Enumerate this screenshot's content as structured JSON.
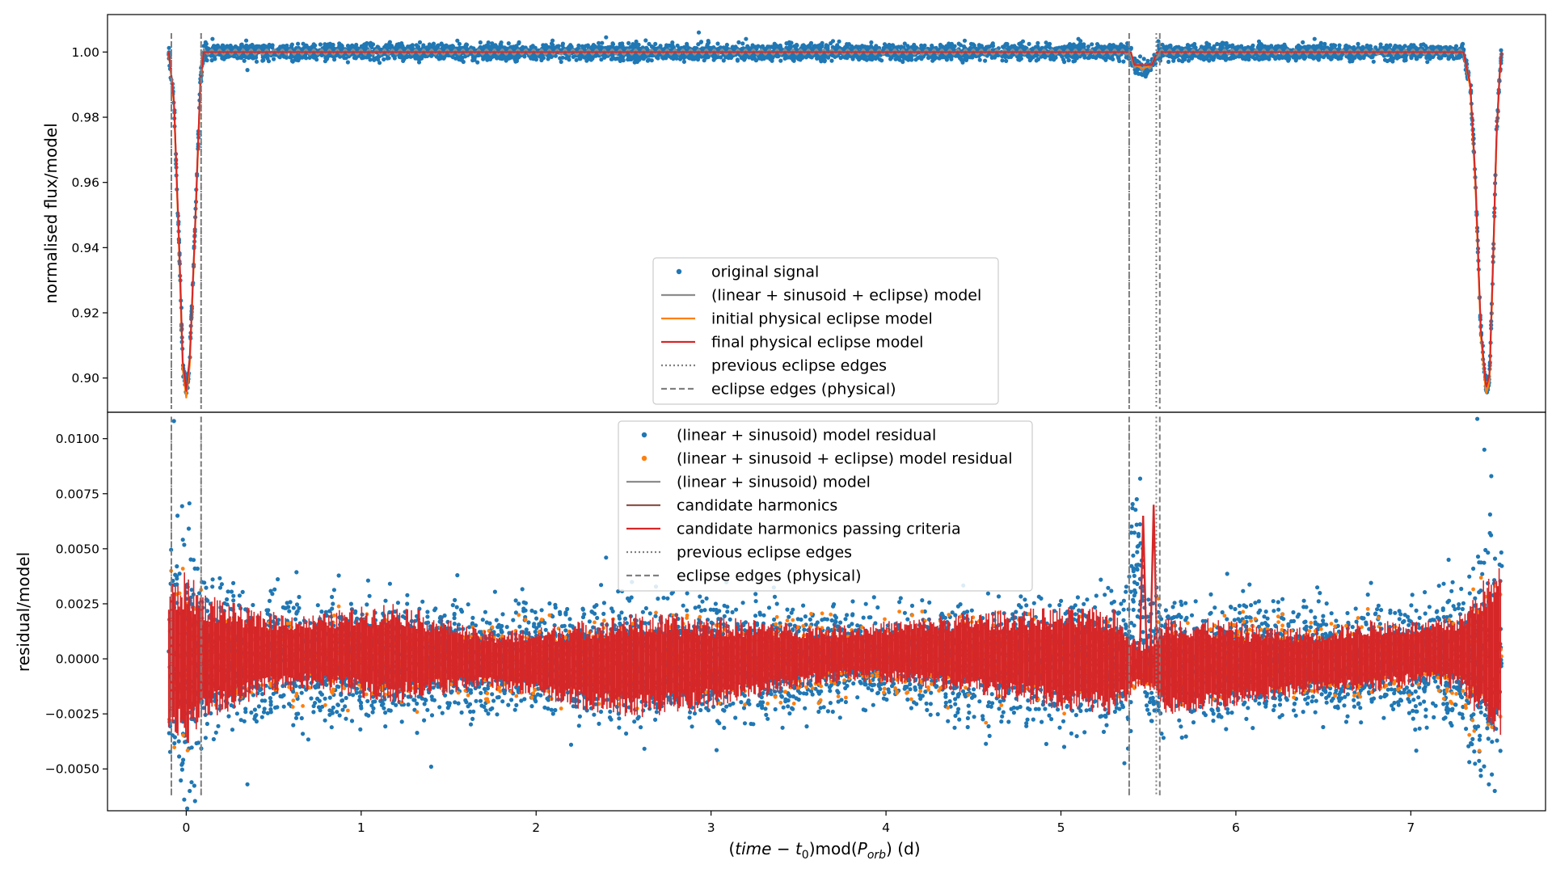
{
  "chart_data": [
    {
      "type": "scatter",
      "panel": "top",
      "title": "",
      "ylabel": "normalised flux/model",
      "xlim": [
        -0.45,
        7.77
      ],
      "ylim": [
        0.8895,
        1.0115
      ],
      "yticks": [
        0.9,
        0.92,
        0.94,
        0.96,
        0.98,
        1.0
      ],
      "ytick_labels": [
        "0.90",
        "0.92",
        "0.94",
        "0.96",
        "0.98",
        "1.00"
      ],
      "grid": false,
      "legend_position": "lower-center",
      "legend": [
        {
          "label": "original signal",
          "kind": "dot",
          "color": "#1f77b4"
        },
        {
          "label": "(linear + sinusoid + eclipse) model",
          "kind": "line",
          "color": "#8c8c8c"
        },
        {
          "label": "initial physical eclipse model",
          "kind": "line",
          "color": "#ff7f0e"
        },
        {
          "label": "final physical eclipse model",
          "kind": "line",
          "color": "#d62728"
        },
        {
          "label": "previous eclipse edges",
          "kind": "dotted",
          "color": "#808080"
        },
        {
          "label": "eclipse edges (physical)",
          "kind": "dashed",
          "color": "#808080"
        }
      ],
      "series": [
        {
          "name": "original signal",
          "color": "#1f77b4",
          "noise": 0.0012,
          "x": [
            -0.1,
            -0.07,
            -0.04,
            -0.02,
            0.0,
            0.02,
            0.05,
            0.08,
            0.1,
            0.3,
            1.0,
            2.0,
            3.0,
            4.0,
            5.0,
            5.38,
            5.42,
            5.47,
            5.52,
            5.56,
            6.0,
            7.0,
            7.3,
            7.34,
            7.37,
            7.4,
            7.43,
            7.45,
            7.47,
            7.49,
            7.51,
            7.52
          ],
          "y": [
            1.0,
            0.985,
            0.94,
            0.905,
            0.895,
            0.906,
            0.945,
            0.99,
            1.0,
            1.0,
            1.0,
            1.0,
            1.0,
            1.0,
            1.0,
            1.0,
            0.996,
            0.995,
            0.996,
            1.0,
            1.0,
            1.0,
            1.0,
            0.99,
            0.96,
            0.915,
            0.896,
            0.9,
            0.935,
            0.975,
            0.995,
            1.0
          ]
        },
        {
          "name": "(linear + sinusoid + eclipse) model",
          "color": "#8c8c8c",
          "x": [
            -0.1,
            -0.07,
            -0.04,
            -0.02,
            0.0,
            0.02,
            0.05,
            0.08,
            0.1,
            5.38,
            5.42,
            5.47,
            5.52,
            5.56,
            7.3,
            7.34,
            7.37,
            7.4,
            7.43,
            7.45,
            7.47,
            7.49,
            7.51,
            7.52
          ],
          "y": [
            1.0,
            0.985,
            0.94,
            0.905,
            0.895,
            0.906,
            0.945,
            0.99,
            1.0,
            1.0,
            0.996,
            0.995,
            0.996,
            1.0,
            1.0,
            0.99,
            0.96,
            0.915,
            0.896,
            0.9,
            0.935,
            0.975,
            0.995,
            1.0
          ]
        },
        {
          "name": "initial physical eclipse model",
          "color": "#ff7f0e",
          "x": [
            -0.1,
            -0.07,
            -0.04,
            -0.02,
            0.0,
            0.02,
            0.05,
            0.08,
            0.1,
            5.4,
            5.42,
            5.47,
            5.52,
            5.55,
            7.3,
            7.34,
            7.37,
            7.4,
            7.43,
            7.45,
            7.47,
            7.49,
            7.51,
            7.52
          ],
          "y": [
            1.0,
            0.984,
            0.938,
            0.903,
            0.894,
            0.904,
            0.944,
            0.989,
            1.0,
            1.0,
            0.996,
            0.995,
            0.996,
            1.0,
            1.0,
            0.989,
            0.958,
            0.913,
            0.895,
            0.899,
            0.934,
            0.974,
            0.995,
            1.0
          ]
        },
        {
          "name": "final physical eclipse model",
          "color": "#d62728",
          "x": [
            -0.1,
            -0.07,
            -0.04,
            -0.02,
            0.0,
            0.02,
            0.05,
            0.08,
            0.1,
            5.4,
            5.42,
            5.47,
            5.52,
            5.55,
            7.3,
            7.34,
            7.37,
            7.4,
            7.43,
            7.45,
            7.47,
            7.49,
            7.51,
            7.52
          ],
          "y": [
            1.0,
            0.985,
            0.94,
            0.905,
            0.896,
            0.906,
            0.945,
            0.99,
            1.0,
            1.0,
            0.996,
            0.996,
            0.996,
            1.0,
            1.0,
            0.99,
            0.96,
            0.915,
            0.897,
            0.901,
            0.936,
            0.975,
            0.995,
            1.0
          ]
        }
      ],
      "outliers": {
        "x": [
          0.15,
          0.35,
          1.55,
          2.4,
          2.93,
          3.2,
          4.45,
          5.1,
          6.45,
          6.9
        ],
        "y": [
          1.004,
          0.9945,
          1.0035,
          1.0045,
          1.006,
          1.004,
          1.0035,
          1.004,
          1.004,
          0.998
        ]
      },
      "vlines": [
        {
          "x": -0.085,
          "style": "dotted"
        },
        {
          "x": -0.085,
          "style": "dashed"
        },
        {
          "x": 0.085,
          "style": "dotted"
        },
        {
          "x": 0.085,
          "style": "dashed"
        },
        {
          "x": 5.39,
          "style": "dotted"
        },
        {
          "x": 5.39,
          "style": "dashed"
        },
        {
          "x": 5.545,
          "style": "dotted"
        },
        {
          "x": 5.565,
          "style": "dashed"
        }
      ]
    },
    {
      "type": "scatter",
      "panel": "bottom",
      "title": "",
      "xlabel": "(time − t0)mod(Porb) (d)",
      "xlabel_parts": {
        "open": "(",
        "time": "time",
        "minus": " − ",
        "t": "t",
        "t_sub": "0",
        "close_mod": ")mod(",
        "P": "P",
        "P_sub": "orb",
        "close": ")",
        "unit": " (d)"
      },
      "ylabel": "residual/model",
      "xlim": [
        -0.45,
        7.77
      ],
      "ylim": [
        -0.0069,
        0.0112
      ],
      "xticks": [
        0,
        1,
        2,
        3,
        4,
        5,
        6,
        7
      ],
      "xtick_labels": [
        "0",
        "1",
        "2",
        "3",
        "4",
        "5",
        "6",
        "7"
      ],
      "yticks": [
        -0.005,
        -0.0025,
        0.0,
        0.0025,
        0.005,
        0.0075,
        0.01
      ],
      "ytick_labels": [
        "−0.0050",
        "−0.0025",
        "0.0000",
        "0.0025",
        "0.0050",
        "0.0075",
        "0.0100"
      ],
      "grid": false,
      "legend_position": "upper-center",
      "legend": [
        {
          "label": "(linear + sinusoid) model residual",
          "kind": "dot",
          "color": "#1f77b4"
        },
        {
          "label": "(linear + sinusoid + eclipse) model residual",
          "kind": "dot",
          "color": "#ff7f0e"
        },
        {
          "label": "(linear + sinusoid) model",
          "kind": "line",
          "color": "#8c8c8c"
        },
        {
          "label": "candidate harmonics",
          "kind": "line",
          "color": "#8c564b"
        },
        {
          "label": "candidate harmonics passing criteria",
          "kind": "line",
          "color": "#d62728"
        },
        {
          "label": "previous eclipse edges",
          "kind": "dotted",
          "color": "#808080"
        },
        {
          "label": "eclipse edges (physical)",
          "kind": "dashed",
          "color": "#808080"
        }
      ],
      "series": [
        {
          "name": "candidate harmonics passing criteria",
          "color": "#d62728",
          "x": [
            -0.1,
            0.0,
            0.1,
            0.4,
            0.7,
            1.0,
            1.2,
            1.4,
            1.7,
            2.0,
            2.3,
            2.6,
            2.9,
            3.2,
            3.5,
            3.8,
            4.1,
            4.4,
            4.7,
            5.0,
            5.3,
            5.39,
            5.45,
            5.55,
            5.6,
            5.9,
            6.2,
            6.5,
            6.8,
            7.1,
            7.3,
            7.4,
            7.52
          ],
          "amp": [
            0.0035,
            0.004,
            0.003,
            0.002,
            0.0017,
            0.0021,
            0.0024,
            0.0019,
            0.0013,
            0.0016,
            0.0021,
            0.0024,
            0.0022,
            0.0019,
            0.0015,
            0.0013,
            0.0015,
            0.0018,
            0.0021,
            0.0024,
            0.0025,
            0.0016,
            0.001,
            0.0016,
            0.0023,
            0.0021,
            0.0017,
            0.0015,
            0.0017,
            0.0015,
            0.0018,
            0.0032,
            0.004
          ]
        },
        {
          "name": "(linear + sinusoid) model residual",
          "color": "#1f77b4",
          "x": [
            -0.1,
            0.0,
            0.1,
            0.4,
            1.0,
            1.4,
            2.0,
            2.6,
            3.2,
            3.8,
            4.4,
            5.0,
            5.3,
            5.39,
            5.45,
            5.55,
            5.6,
            6.2,
            6.8,
            7.3,
            7.4,
            7.52
          ],
          "amp": [
            0.005,
            0.0055,
            0.0032,
            0.0026,
            0.0026,
            0.0022,
            0.002,
            0.0026,
            0.0023,
            0.0018,
            0.0022,
            0.0026,
            0.0028,
            0.0035,
            0.003,
            0.0035,
            0.0028,
            0.0022,
            0.0021,
            0.003,
            0.005,
            0.0055
          ]
        },
        {
          "name": "(linear + sinusoid + eclipse) model residual",
          "color": "#ff7f0e",
          "x": [
            -0.1,
            0.0,
            0.1,
            0.4,
            1.0,
            2.0,
            3.0,
            4.0,
            5.0,
            5.39,
            5.56,
            6.0,
            7.0,
            7.3,
            7.4,
            7.52
          ],
          "amp": [
            0.0045,
            0.0045,
            0.0022,
            0.0018,
            0.0018,
            0.0018,
            0.0018,
            0.0018,
            0.002,
            0.0014,
            0.0018,
            0.0018,
            0.0018,
            0.0022,
            0.0045,
            0.005
          ]
        }
      ],
      "dips": {
        "x": [
          5.41,
          5.44,
          5.47,
          5.5,
          5.53
        ],
        "y": [
          -0.001,
          -0.0005,
          0.0065,
          0.0,
          0.007
        ]
      },
      "outliers": {
        "x": [
          -0.07,
          -0.05,
          0.02,
          0.35,
          1.4,
          1.55,
          2.2,
          2.4,
          7.38,
          7.42,
          7.46,
          7.48
        ],
        "y": [
          0.0108,
          0.0065,
          -0.006,
          -0.0057,
          -0.0049,
          0.0038,
          -0.0039,
          0.0046,
          0.0109,
          0.0095,
          0.0083,
          -0.006
        ]
      },
      "vlines": [
        {
          "x": -0.085,
          "style": "dotted"
        },
        {
          "x": -0.085,
          "style": "dashed"
        },
        {
          "x": 0.085,
          "style": "dotted"
        },
        {
          "x": 0.085,
          "style": "dashed"
        },
        {
          "x": 5.39,
          "style": "dotted"
        },
        {
          "x": 5.39,
          "style": "dashed"
        },
        {
          "x": 5.545,
          "style": "dotted"
        },
        {
          "x": 5.565,
          "style": "dashed"
        }
      ]
    }
  ]
}
